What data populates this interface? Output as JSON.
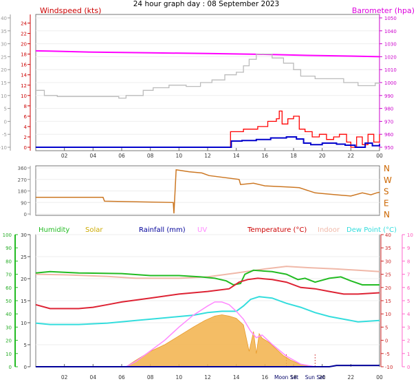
{
  "title": "24 hour graph day : 08 September 2023",
  "colors": {
    "wind_avg": "#0000cc",
    "wind_gust": "#ff0000",
    "barometer": "#ff00ff",
    "humidity": "#22bb22",
    "solar": "#f2b24a",
    "rain": "#000099",
    "uv": "#ff88ff",
    "temperature": "#dd2233",
    "indoor": "#f0b8a8",
    "dew_point": "#33dddd",
    "direction": "#cc7722",
    "grey_line": "#bbbbbb"
  },
  "chart_data": [
    {
      "type": "line",
      "panel": "wind-barometer",
      "x_unit": "hour",
      "xlim": [
        0,
        24
      ],
      "x_ticks": [
        "02",
        "04",
        "06",
        "08",
        "10",
        "12",
        "14",
        "16",
        "18",
        "20",
        "22",
        "00"
      ],
      "left_axis": {
        "label": "Windspeed (kts)",
        "ylim": [
          0,
          25
        ],
        "ticks": [
          "0",
          "2",
          "4",
          "6",
          "8",
          "10",
          "12",
          "14",
          "16",
          "18",
          "20",
          "22",
          "24"
        ]
      },
      "outer_axis": {
        "ylim": [
          -10,
          40
        ],
        "ticks": [
          "-10",
          "-5",
          "0",
          "5",
          "10",
          "15",
          "20",
          "25",
          "30",
          "35",
          "40"
        ]
      },
      "right_axis": {
        "label": "Barometer (hpa)",
        "ylim": [
          950,
          1050
        ],
        "ticks": [
          "950",
          "960",
          "970",
          "980",
          "990",
          "1000",
          "1010",
          "1020",
          "1030",
          "1040",
          "1050"
        ]
      },
      "series": [
        {
          "key": "barometer",
          "axis": "right",
          "x": [
            0,
            1,
            4,
            8,
            12,
            16,
            19,
            22,
            24
          ],
          "y": [
            1024.5,
            1024.3,
            1023.5,
            1023,
            1022.5,
            1021.8,
            1021,
            1020.5,
            1020
          ]
        },
        {
          "key": "grey",
          "axis": "outer",
          "style": "step",
          "x": [
            0,
            0.6,
            1.5,
            4,
            5.8,
            6.3,
            7.5,
            8.2,
            9.3,
            10.5,
            11.5,
            12.3,
            13.2,
            14,
            14.5,
            14.9,
            15.4,
            16.5,
            17.3,
            18,
            18.5,
            19.5,
            21.5,
            22.5,
            23.7,
            24
          ],
          "y": [
            12,
            10,
            9.6,
            9.6,
            9,
            10,
            12,
            13,
            14,
            13.5,
            15,
            16,
            18,
            19,
            21.5,
            24,
            26,
            24.5,
            22.5,
            20,
            17.5,
            16.5,
            15,
            13.8,
            14.8,
            14.5
          ]
        },
        {
          "key": "wind_gust",
          "axis": "left",
          "style": "jagged",
          "x": [
            0,
            13.55,
            13.6,
            14.5,
            15.5,
            16.2,
            16.8,
            17,
            17.2,
            17.6,
            18,
            18.4,
            18.8,
            19.3,
            19.8,
            20.3,
            20.8,
            21.2,
            21.7,
            22,
            22.4,
            22.8,
            23.2,
            23.6,
            24
          ],
          "y": [
            0,
            0,
            3,
            3.5,
            4,
            5,
            5.5,
            7,
            4.5,
            5.5,
            6,
            3.5,
            3,
            2,
            2.5,
            1.5,
            2,
            2.5,
            1,
            0,
            2,
            0.5,
            2.5,
            1,
            2.5
          ]
        },
        {
          "key": "wind_avg",
          "axis": "left",
          "style": "step",
          "x": [
            0,
            13.55,
            13.65,
            14.4,
            15.4,
            16.4,
            17.5,
            18.2,
            18.7,
            19.2,
            20,
            21,
            21.6,
            22.3,
            23,
            23.5,
            24
          ],
          "y": [
            0,
            0,
            1.2,
            1.3,
            1.5,
            1.8,
            2.0,
            1.6,
            0.8,
            0.5,
            0.8,
            0.6,
            0.4,
            0,
            0.8,
            0.3,
            0.6
          ]
        }
      ]
    },
    {
      "type": "line",
      "panel": "wind-direction",
      "x_unit": "hour",
      "xlim": [
        0,
        24
      ],
      "ylim": [
        0,
        360
      ],
      "left_ticks": [
        "0",
        "90",
        "180",
        "270",
        "360"
      ],
      "right_labels": [
        "N",
        "E",
        "S",
        "W",
        "N"
      ],
      "series": [
        {
          "key": "direction",
          "x": [
            0,
            4.7,
            4.8,
            9.6,
            9.65,
            9.8,
            10.7,
            11.6,
            12.1,
            14.2,
            14.3,
            15.2,
            16,
            17.7,
            18.4,
            19.5,
            20,
            21,
            22,
            22.8,
            23.4,
            23.8,
            24
          ],
          "y": [
            130,
            130,
            100,
            90,
            5,
            345,
            330,
            320,
            300,
            270,
            230,
            240,
            220,
            210,
            205,
            165,
            160,
            150,
            140,
            165,
            150,
            165,
            170
          ]
        }
      ]
    },
    {
      "type": "line",
      "panel": "temperature-humidity",
      "x_unit": "hour",
      "xlim": [
        0,
        24
      ],
      "x_ticks": [
        "02",
        "04",
        "06",
        "08",
        "10",
        "12",
        "14",
        "16",
        "18",
        "20",
        "22",
        "00"
      ],
      "inner_left_axis": {
        "ylim": [
          0,
          30
        ],
        "ticks": [
          "0",
          "5",
          "10",
          "15",
          "20",
          "25",
          "30"
        ]
      },
      "outer_left_axis": {
        "ylim": [
          0,
          100
        ],
        "ticks": [
          "0",
          "10",
          "20",
          "30",
          "40",
          "50",
          "60",
          "70",
          "80",
          "90",
          "100"
        ]
      },
      "right_axis": {
        "ylim": [
          -10,
          40
        ],
        "ticks": [
          "-10",
          "-5",
          "0",
          "5",
          "10",
          "15",
          "20",
          "25",
          "30",
          "35",
          "40"
        ]
      },
      "outer_right_axis": {
        "ylim": [
          0,
          10
        ],
        "ticks": [
          "0",
          "1",
          "2",
          "3",
          "4",
          "5",
          "6",
          "7",
          "8",
          "9",
          "10"
        ]
      },
      "legend": [
        {
          "label": "Humidity",
          "key": "humidity"
        },
        {
          "label": "Solar",
          "key": "solar"
        },
        {
          "label": "Rainfall (mm)",
          "key": "rain"
        },
        {
          "label": "UV",
          "key": "uv"
        },
        {
          "label": "Temperature (°C)",
          "key": "temperature"
        },
        {
          "label": "Indoor",
          "key": "indoor"
        },
        {
          "label": "Dew Point (°C)",
          "key": "dew_point"
        }
      ],
      "markers": [
        {
          "label": "Moon Set",
          "x": 17.5
        },
        {
          "label": "Sun Set",
          "x": 19.5
        }
      ],
      "series": [
        {
          "key": "indoor",
          "axis": "right",
          "x": [
            0,
            2,
            5,
            7,
            10,
            12,
            14,
            16,
            17.5,
            19,
            21,
            22.5,
            24
          ],
          "y": [
            25,
            24.8,
            24.2,
            23.5,
            23.5,
            24,
            25.5,
            27,
            28,
            27.5,
            27,
            26.5,
            26
          ]
        },
        {
          "key": "humidity",
          "axis": "outer_left",
          "x": [
            0,
            1,
            3,
            6,
            8,
            10,
            11.5,
            12.5,
            13.3,
            13.8,
            14.3,
            14.6,
            15.2,
            16.5,
            17.5,
            18.3,
            18.8,
            19.5,
            20.5,
            21.3,
            22,
            22.8,
            24
          ],
          "y": [
            71,
            72,
            71,
            70.5,
            69,
            69,
            68,
            67,
            65,
            62,
            63,
            70,
            73,
            72,
            70,
            66,
            67,
            64,
            67,
            68,
            65,
            62,
            62
          ]
        },
        {
          "key": "temperature",
          "axis": "right",
          "x": [
            0,
            1,
            3,
            4,
            5,
            6,
            8,
            10,
            12,
            13.5,
            14.2,
            14.8,
            15.5,
            16.5,
            17.5,
            18.5,
            19.5,
            20.5,
            21.5,
            22.5,
            24
          ],
          "y": [
            13.5,
            12,
            12,
            12.5,
            13.5,
            14.5,
            16,
            17.5,
            18.5,
            19.5,
            22,
            23,
            23.5,
            23,
            22,
            20,
            19.5,
            18.5,
            17.5,
            17.5,
            18
          ]
        },
        {
          "key": "dew_point",
          "axis": "right",
          "x": [
            0,
            1,
            3,
            5,
            7,
            9,
            11,
            12,
            13,
            14,
            14.5,
            15,
            15.6,
            16.5,
            17.5,
            18.5,
            19.5,
            20.5,
            21.5,
            22.5,
            24
          ],
          "y": [
            6.5,
            6,
            6,
            6.5,
            7.5,
            8.5,
            9.5,
            10.5,
            11,
            11,
            13,
            15.5,
            16.5,
            16,
            14,
            12.5,
            10.5,
            9,
            8,
            7,
            7.5
          ]
        },
        {
          "key": "solar",
          "axis": "inner_left",
          "style": "area",
          "x": [
            6.3,
            7,
            8,
            9,
            10,
            11,
            11.8,
            12.5,
            13,
            13.5,
            14,
            14.5,
            14.9,
            15.2,
            15.4,
            15.6,
            15.8,
            16.3,
            16.8,
            17.3,
            17.8,
            18.5,
            19.3
          ],
          "y": [
            0,
            1.5,
            3.5,
            5,
            7,
            9,
            10.5,
            11.5,
            11.8,
            11.5,
            11,
            9.5,
            3.5,
            8,
            3,
            7.5,
            6.5,
            5.5,
            4,
            2.5,
            1.5,
            0.5,
            0
          ]
        },
        {
          "key": "uv",
          "axis": "outer_right",
          "x": [
            6.3,
            7,
            8,
            9,
            10,
            11,
            12,
            12.5,
            13,
            13.5,
            14,
            14.5,
            15,
            15.4,
            15.8,
            16.5,
            17.5,
            18.5,
            19.5
          ],
          "y": [
            0,
            0.4,
            1.2,
            2,
            3,
            3.9,
            4.6,
            4.9,
            4.9,
            4.7,
            4.2,
            3.6,
            2.7,
            2.2,
            2.4,
            1.7,
            0.8,
            0.2,
            0
          ]
        },
        {
          "key": "rain",
          "axis": "inner_left",
          "x": [
            0,
            20.5,
            21,
            24
          ],
          "y": [
            0,
            0,
            0.3,
            0.3
          ]
        }
      ]
    }
  ]
}
